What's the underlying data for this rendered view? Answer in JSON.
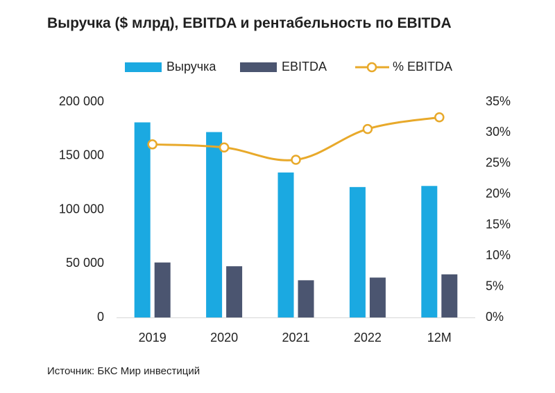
{
  "title": "Выручка ($ млрд), EBITDA и рентабельность по EBITDA",
  "source": "Источник: БКС Мир инвестиций",
  "colors": {
    "revenue": "#1ba9e1",
    "ebitda": "#4b5570",
    "margin": "#e8a92a",
    "text": "#222222"
  },
  "chart_data": {
    "type": "bar",
    "categories": [
      "2019",
      "2020",
      "2021",
      "2022",
      "12M"
    ],
    "series": [
      {
        "name": "Выручка",
        "type": "bar",
        "axis": "left",
        "values": [
          181000,
          172000,
          134500,
          121000,
          122000
        ]
      },
      {
        "name": "EBITDA",
        "type": "bar",
        "axis": "left",
        "values": [
          51000,
          47500,
          34500,
          37000,
          40000
        ]
      },
      {
        "name": "% EBITDA",
        "type": "line",
        "axis": "right",
        "values": [
          28.1,
          27.6,
          25.6,
          30.6,
          32.5
        ]
      }
    ],
    "y_left": {
      "ylim": [
        0,
        200000
      ],
      "ticks": [
        "0",
        "50 000",
        "100 000",
        "150 000",
        "200 000"
      ]
    },
    "y_right": {
      "ylim": [
        0,
        35
      ],
      "ticks": [
        "0%",
        "5%",
        "10%",
        "15%",
        "20%",
        "25%",
        "30%",
        "35%"
      ]
    },
    "legend": {
      "position": "top",
      "labels": [
        "Выручка",
        "EBITDA",
        "% EBITDA"
      ]
    },
    "grid": false
  }
}
